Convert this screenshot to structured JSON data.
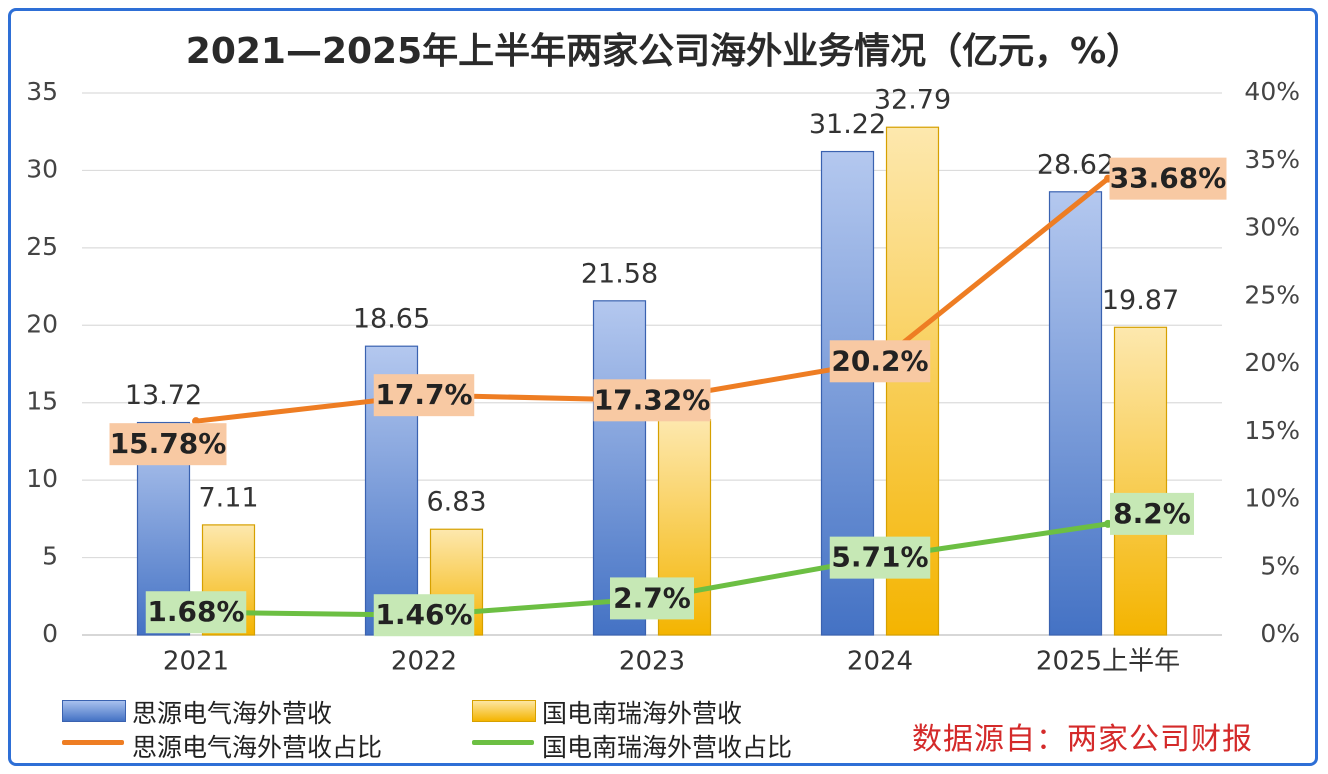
{
  "title": "2021—2025年上半年两家公司海外业务情况（亿元，%）",
  "source": "数据源自：两家公司财报",
  "colors": {
    "border": "#2e6fd6",
    "bar1": "#4472c4",
    "bar2": "#f4b400",
    "line1": "#ee7d23",
    "line2": "#6cbf43",
    "label1_bg": "#f8c9a3",
    "label2_bg": "#c6e8b5"
  },
  "chart_data": {
    "type": "bar+line",
    "categories": [
      "2021",
      "2022",
      "2023",
      "2024",
      "2025上半年"
    ],
    "left_axis": {
      "ticks": [
        "0",
        "5",
        "10",
        "15",
        "20",
        "25",
        "30",
        "35"
      ],
      "ylim": [
        0,
        35
      ]
    },
    "right_axis": {
      "ticks": [
        "0%",
        "5%",
        "10%",
        "15%",
        "20%",
        "25%",
        "30%",
        "35%",
        "40%"
      ],
      "ylim": [
        0,
        40
      ]
    },
    "bar_series": [
      {
        "name": "思源电气海外营收",
        "values": [
          13.72,
          18.65,
          21.58,
          31.22,
          28.62
        ],
        "labels": [
          "13.72",
          "18.65",
          "21.58",
          "31.22",
          "28.62"
        ]
      },
      {
        "name": "国电南瑞海外营收",
        "values": [
          7.11,
          6.83,
          13.9,
          32.79,
          19.87
        ],
        "labels": [
          "7.11",
          "6.83",
          "",
          "32.79",
          "19.87"
        ]
      }
    ],
    "line_series": [
      {
        "name": "思源电气海外营收占比",
        "values": [
          15.78,
          17.7,
          17.32,
          20.2,
          33.68
        ],
        "labels": [
          "15.78%",
          "17.7%",
          "17.32%",
          "20.2%",
          "33.68%"
        ]
      },
      {
        "name": "国电南瑞海外营收占比",
        "values": [
          1.68,
          1.46,
          2.7,
          5.71,
          8.2
        ],
        "labels": [
          "1.68%",
          "1.46%",
          "2.7%",
          "5.71%",
          "8.2%"
        ]
      }
    ]
  }
}
